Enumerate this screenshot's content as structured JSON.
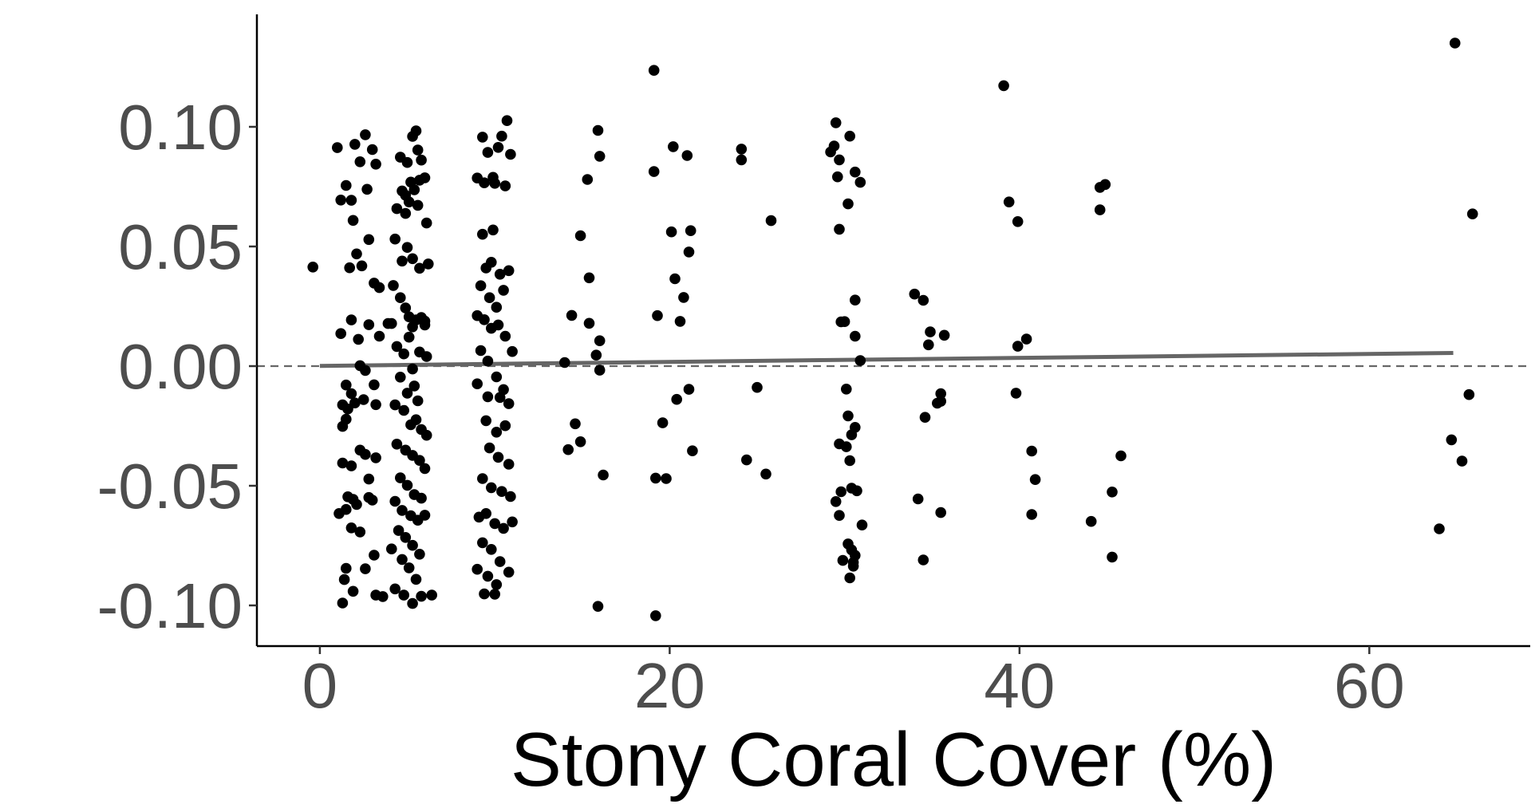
{
  "chart_data": {
    "type": "scatter",
    "title": "",
    "xlabel": "Stony Coral Cover (%)",
    "ylabel": "",
    "xlim": [
      -3.6,
      69.2
    ],
    "ylim": [
      -0.117,
      0.147
    ],
    "x_ticks": [
      0,
      20,
      40,
      60
    ],
    "x_tick_labels": [
      "0",
      "20",
      "40",
      "60"
    ],
    "y_ticks": [
      -0.1,
      -0.05,
      0.0,
      0.05,
      0.1
    ],
    "y_tick_labels": [
      "-0.10",
      "-0.05",
      "0.00",
      "0.05",
      "0.10"
    ],
    "reference_line": {
      "y": 0.0,
      "style": "dashed",
      "color": "#666666"
    },
    "trend_line": {
      "x": [
        0.0,
        64.8
      ],
      "y": [
        0.0001,
        0.0055
      ],
      "color": "#666666"
    },
    "point_color": "#000000",
    "series": [
      {
        "name": "points",
        "points": [
          [
            -0.4,
            0.0414
          ],
          [
            1.0,
            0.0913
          ],
          [
            1.2,
            0.0694
          ],
          [
            1.5,
            0.0755
          ],
          [
            1.8,
            0.0693
          ],
          [
            1.9,
            0.0609
          ],
          [
            2.0,
            0.0927
          ],
          [
            2.3,
            0.0854
          ],
          [
            2.6,
            0.0967
          ],
          [
            2.7,
            0.0739
          ],
          [
            3.0,
            0.0905
          ],
          [
            3.2,
            0.0844
          ],
          [
            1.7,
            0.0411
          ],
          [
            2.1,
            0.0469
          ],
          [
            2.4,
            0.0419
          ],
          [
            2.8,
            0.0529
          ],
          [
            3.1,
            0.0347
          ],
          [
            3.4,
            0.0328
          ],
          [
            1.2,
            0.0136
          ],
          [
            1.8,
            0.0193
          ],
          [
            2.2,
            0.0112
          ],
          [
            2.8,
            0.0173
          ],
          [
            3.4,
            0.0125
          ],
          [
            3.9,
            0.0178
          ],
          [
            2.3,
            0.0002
          ],
          [
            2.6,
            -0.0018
          ],
          [
            3.1,
            -0.0078
          ],
          [
            1.5,
            -0.0079
          ],
          [
            1.8,
            -0.0115
          ],
          [
            1.3,
            -0.0162
          ],
          [
            1.6,
            -0.0179
          ],
          [
            2.0,
            -0.0154
          ],
          [
            1.3,
            -0.0252
          ],
          [
            1.5,
            -0.0222
          ],
          [
            2.5,
            -0.014
          ],
          [
            3.2,
            -0.0161
          ],
          [
            2.3,
            -0.0351
          ],
          [
            2.6,
            -0.0369
          ],
          [
            3.2,
            -0.0383
          ],
          [
            1.3,
            -0.0405
          ],
          [
            1.8,
            -0.0417
          ],
          [
            2.8,
            -0.0472
          ],
          [
            1.6,
            -0.0546
          ],
          [
            1.9,
            -0.0557
          ],
          [
            2.1,
            -0.0578
          ],
          [
            2.8,
            -0.0549
          ],
          [
            3.0,
            -0.056
          ],
          [
            1.1,
            -0.0616
          ],
          [
            1.5,
            -0.0599
          ],
          [
            1.8,
            -0.0676
          ],
          [
            2.3,
            -0.0693
          ],
          [
            1.5,
            -0.0845
          ],
          [
            1.4,
            -0.0892
          ],
          [
            1.9,
            -0.0941
          ],
          [
            2.6,
            -0.0847
          ],
          [
            3.1,
            -0.079
          ],
          [
            1.3,
            -0.099
          ],
          [
            3.2,
            -0.0957
          ],
          [
            3.6,
            -0.0963
          ],
          [
            4.6,
            0.0873
          ],
          [
            5.0,
            0.0851
          ],
          [
            5.3,
            0.096
          ],
          [
            5.5,
            0.0983
          ],
          [
            5.6,
            0.0903
          ],
          [
            5.8,
            0.0861
          ],
          [
            6.0,
            0.0787
          ],
          [
            4.7,
            0.0732
          ],
          [
            4.9,
            0.0714
          ],
          [
            5.2,
            0.0769
          ],
          [
            5.4,
            0.0737
          ],
          [
            5.7,
            0.0777
          ],
          [
            4.4,
            0.0658
          ],
          [
            4.9,
            0.0638
          ],
          [
            5.1,
            0.0686
          ],
          [
            5.6,
            0.0672
          ],
          [
            6.1,
            0.0598
          ],
          [
            4.3,
            0.0531
          ],
          [
            4.7,
            0.0439
          ],
          [
            5.0,
            0.0496
          ],
          [
            5.3,
            0.0449
          ],
          [
            5.7,
            0.0409
          ],
          [
            4.2,
            0.0337
          ],
          [
            4.6,
            0.0286
          ],
          [
            4.9,
            0.0243
          ],
          [
            5.1,
            0.0206
          ],
          [
            5.3,
            0.0164
          ],
          [
            5.5,
            0.0193
          ],
          [
            5.8,
            0.0203
          ],
          [
            6.0,
            0.0172
          ],
          [
            4.1,
            0.0178
          ],
          [
            4.4,
            0.0082
          ],
          [
            4.8,
            0.0051
          ],
          [
            5.1,
            0.0121
          ],
          [
            5.3,
            -0.0012
          ],
          [
            5.7,
            0.0059
          ],
          [
            6.0,
            0.0188
          ],
          [
            4.6,
            -0.0046
          ],
          [
            5.0,
            -0.0113
          ],
          [
            5.4,
            -0.0083
          ],
          [
            5.6,
            -0.0145
          ],
          [
            4.3,
            -0.0162
          ],
          [
            4.8,
            -0.0185
          ],
          [
            5.2,
            -0.0245
          ],
          [
            5.5,
            -0.0224
          ],
          [
            5.8,
            -0.0265
          ],
          [
            6.1,
            -0.0289
          ],
          [
            4.4,
            -0.0326
          ],
          [
            4.9,
            -0.0351
          ],
          [
            5.3,
            -0.0373
          ],
          [
            5.7,
            -0.0394
          ],
          [
            6.0,
            -0.0428
          ],
          [
            4.6,
            -0.0467
          ],
          [
            5.0,
            -0.0498
          ],
          [
            5.4,
            -0.0537
          ],
          [
            5.8,
            -0.0552
          ],
          [
            4.3,
            -0.0565
          ],
          [
            4.7,
            -0.0603
          ],
          [
            5.2,
            -0.0625
          ],
          [
            5.6,
            -0.0644
          ],
          [
            6.0,
            -0.0623
          ],
          [
            4.5,
            -0.0687
          ],
          [
            4.9,
            -0.0716
          ],
          [
            5.3,
            -0.0749
          ],
          [
            5.7,
            -0.0786
          ],
          [
            4.1,
            -0.0764
          ],
          [
            4.7,
            -0.0808
          ],
          [
            5.1,
            -0.0843
          ],
          [
            5.5,
            -0.0891
          ],
          [
            4.3,
            -0.0931
          ],
          [
            4.8,
            -0.0957
          ],
          [
            5.3,
            -0.0992
          ],
          [
            5.8,
            -0.0962
          ],
          [
            6.4,
            -0.0957
          ],
          [
            6.2,
            0.0427
          ],
          [
            6.1,
            0.004
          ],
          [
            9.0,
            0.0786
          ],
          [
            9.3,
            0.0957
          ],
          [
            9.6,
            0.0893
          ],
          [
            9.9,
            0.0789
          ],
          [
            10.2,
            0.0914
          ],
          [
            10.4,
            0.0961
          ],
          [
            10.7,
            0.1026
          ],
          [
            10.9,
            0.0885
          ],
          [
            10.0,
            0.0764
          ],
          [
            10.6,
            0.0753
          ],
          [
            9.4,
            0.0766
          ],
          [
            9.3,
            0.0551
          ],
          [
            9.9,
            0.0569
          ],
          [
            9.5,
            0.041
          ],
          [
            9.8,
            0.0434
          ],
          [
            10.3,
            0.0384
          ],
          [
            10.8,
            0.0399
          ],
          [
            9.2,
            0.0336
          ],
          [
            9.7,
            0.0286
          ],
          [
            10.1,
            0.0246
          ],
          [
            10.5,
            0.0317
          ],
          [
            9.0,
            0.0211
          ],
          [
            9.4,
            0.0194
          ],
          [
            9.8,
            0.0158
          ],
          [
            10.2,
            0.0172
          ],
          [
            10.6,
            0.0125
          ],
          [
            11.0,
            0.0061
          ],
          [
            9.2,
            0.0065
          ],
          [
            9.6,
            0.0021
          ],
          [
            10.1,
            -0.0045
          ],
          [
            10.5,
            -0.0098
          ],
          [
            9.0,
            -0.0074
          ],
          [
            9.6,
            -0.0128
          ],
          [
            10.3,
            -0.0131
          ],
          [
            10.8,
            -0.0157
          ],
          [
            9.5,
            -0.0228
          ],
          [
            10.1,
            -0.0276
          ],
          [
            10.6,
            -0.0249
          ],
          [
            9.7,
            -0.0342
          ],
          [
            10.2,
            -0.0381
          ],
          [
            10.8,
            -0.041
          ],
          [
            9.3,
            -0.047
          ],
          [
            9.8,
            -0.0508
          ],
          [
            10.4,
            -0.0524
          ],
          [
            10.9,
            -0.0545
          ],
          [
            9.1,
            -0.0631
          ],
          [
            9.5,
            -0.0616
          ],
          [
            10.0,
            -0.0658
          ],
          [
            10.5,
            -0.0678
          ],
          [
            11.0,
            -0.0651
          ],
          [
            9.3,
            -0.0738
          ],
          [
            9.8,
            -0.0766
          ],
          [
            10.3,
            -0.0817
          ],
          [
            10.8,
            -0.0861
          ],
          [
            9.0,
            -0.0849
          ],
          [
            9.6,
            -0.0878
          ],
          [
            10.1,
            -0.0913
          ],
          [
            9.4,
            -0.0952
          ],
          [
            10.0,
            -0.0953
          ],
          [
            14.0,
            0.0015
          ],
          [
            14.2,
            -0.0349
          ],
          [
            14.4,
            0.0212
          ],
          [
            14.6,
            -0.0241
          ],
          [
            14.9,
            0.0545
          ],
          [
            14.9,
            -0.0316
          ],
          [
            15.3,
            0.078
          ],
          [
            15.4,
            0.0369
          ],
          [
            15.4,
            0.0179
          ],
          [
            15.9,
            0.0985
          ],
          [
            16.0,
            0.0877
          ],
          [
            16.0,
            0.0106
          ],
          [
            15.8,
            0.0046
          ],
          [
            16.0,
            -0.0017
          ],
          [
            16.2,
            -0.0455
          ],
          [
            15.9,
            -0.1004
          ],
          [
            19.1,
            0.1236
          ],
          [
            19.1,
            0.0813
          ],
          [
            19.3,
            0.0211
          ],
          [
            19.2,
            -0.0468
          ],
          [
            19.8,
            -0.047
          ],
          [
            19.6,
            -0.0237
          ],
          [
            19.2,
            -0.1043
          ],
          [
            20.2,
            0.0917
          ],
          [
            20.1,
            0.0561
          ],
          [
            20.3,
            0.0365
          ],
          [
            20.6,
            0.0187
          ],
          [
            20.4,
            -0.0139
          ],
          [
            20.8,
            0.0287
          ],
          [
            21.0,
            0.088
          ],
          [
            21.2,
            0.0566
          ],
          [
            21.1,
            0.0477
          ],
          [
            21.1,
            -0.0097
          ],
          [
            21.3,
            -0.0354
          ],
          [
            24.1,
            0.0907
          ],
          [
            24.1,
            0.0862
          ],
          [
            24.4,
            -0.0392
          ],
          [
            25.0,
            -0.0089
          ],
          [
            25.5,
            -0.0451
          ],
          [
            25.8,
            0.0608
          ],
          [
            29.2,
            0.0895
          ],
          [
            29.4,
            0.092
          ],
          [
            29.7,
            0.0862
          ],
          [
            29.6,
            0.0791
          ],
          [
            29.5,
            0.1017
          ],
          [
            30.3,
            0.0961
          ],
          [
            30.6,
            0.0811
          ],
          [
            30.9,
            0.0768
          ],
          [
            30.2,
            0.0678
          ],
          [
            29.7,
            0.0572
          ],
          [
            30.6,
            0.0276
          ],
          [
            29.8,
            0.0185
          ],
          [
            30.0,
            0.0186
          ],
          [
            30.6,
            0.0125
          ],
          [
            30.9,
            0.0023
          ],
          [
            30.1,
            -0.0096
          ],
          [
            30.2,
            -0.0208
          ],
          [
            30.6,
            -0.0256
          ],
          [
            30.4,
            -0.0287
          ],
          [
            29.7,
            -0.0325
          ],
          [
            30.1,
            -0.0337
          ],
          [
            30.3,
            -0.0395
          ],
          [
            29.8,
            -0.0525
          ],
          [
            30.4,
            -0.051
          ],
          [
            30.7,
            -0.0521
          ],
          [
            29.5,
            -0.0566
          ],
          [
            29.7,
            -0.0624
          ],
          [
            31.0,
            -0.0664
          ],
          [
            30.2,
            -0.0743
          ],
          [
            30.4,
            -0.0768
          ],
          [
            30.6,
            -0.0791
          ],
          [
            29.9,
            -0.0812
          ],
          [
            30.5,
            -0.082
          ],
          [
            30.5,
            -0.0836
          ],
          [
            30.3,
            -0.0885
          ],
          [
            34.0,
            0.0301
          ],
          [
            34.5,
            0.0275
          ],
          [
            34.9,
            0.0143
          ],
          [
            35.7,
            0.0129
          ],
          [
            34.8,
            0.0089
          ],
          [
            35.5,
            -0.0115
          ],
          [
            35.5,
            -0.0147
          ],
          [
            35.3,
            -0.0155
          ],
          [
            34.6,
            -0.0214
          ],
          [
            34.2,
            -0.0555
          ],
          [
            35.5,
            -0.0612
          ],
          [
            34.5,
            -0.081
          ],
          [
            39.1,
            0.1172
          ],
          [
            39.4,
            0.0686
          ],
          [
            39.9,
            0.0604
          ],
          [
            39.9,
            0.0083
          ],
          [
            40.4,
            0.0113
          ],
          [
            39.8,
            -0.0113
          ],
          [
            40.7,
            -0.0355
          ],
          [
            40.9,
            -0.0474
          ],
          [
            40.7,
            -0.062
          ],
          [
            44.9,
            0.0759
          ],
          [
            44.6,
            0.0747
          ],
          [
            44.6,
            0.0653
          ],
          [
            45.3,
            -0.0526
          ],
          [
            45.8,
            -0.0375
          ],
          [
            44.1,
            -0.0649
          ],
          [
            45.3,
            -0.0798
          ],
          [
            64.0,
            -0.068
          ],
          [
            64.7,
            -0.0308
          ],
          [
            64.9,
            0.135
          ],
          [
            65.3,
            -0.0397
          ],
          [
            65.7,
            -0.0119
          ],
          [
            65.9,
            0.0636
          ]
        ]
      }
    ]
  }
}
